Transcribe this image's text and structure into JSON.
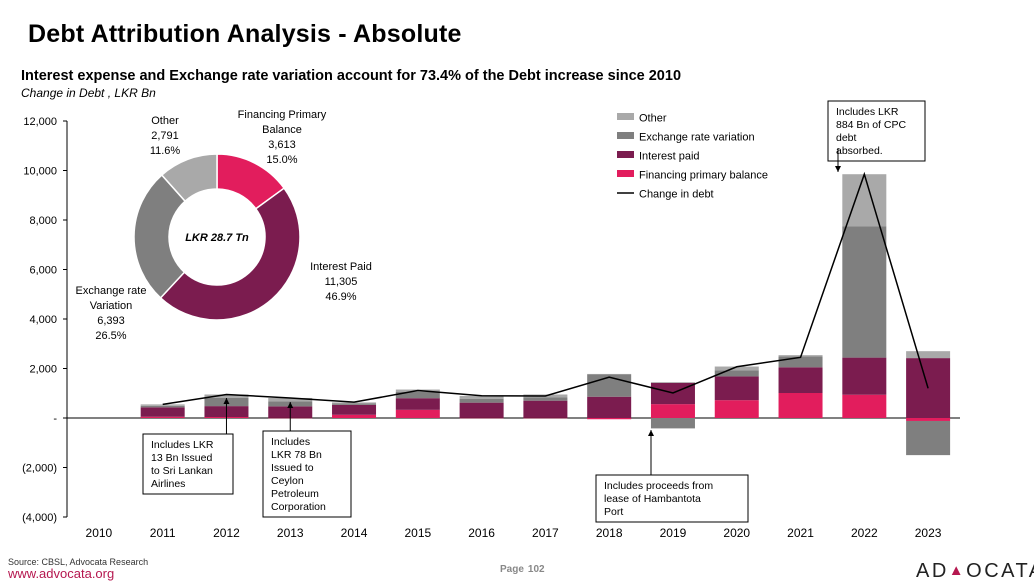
{
  "title": "Debt Attribution Analysis - Absolute",
  "subtitle": "Interest expense and Exchange rate variation account for 73.4% of the Debt increase since 2010",
  "units_label": "Change in Debt , LKR Bn",
  "footer": {
    "source": "Source: CBSL, Advocata Research",
    "url": "www.advocata.org",
    "page_label": "Page",
    "page_number": "102",
    "logo_text": "ADVOCATA"
  },
  "colors": {
    "other": "#a9a9a9",
    "exchange": "#7f7f7f",
    "interest": "#7b1c4f",
    "financing": "#e21d5d",
    "line": "#000000"
  },
  "chart_data": [
    {
      "type": "bar",
      "stacked": true,
      "categories": [
        "2010",
        "2011",
        "2012",
        "2013",
        "2014",
        "2015",
        "2016",
        "2017",
        "2018",
        "2019",
        "2020",
        "2021",
        "2022",
        "2023"
      ],
      "ylim": [
        -4000,
        12000
      ],
      "yticks": [
        -4000,
        -2000,
        0,
        2000,
        4000,
        6000,
        8000,
        10000,
        12000
      ],
      "ytick_labels": [
        "(4,000)",
        "(2,000)",
        "-",
        "2,000",
        "4,000",
        "6,000",
        "8,000",
        "10,000",
        "12,000"
      ],
      "legend_position": "top-right",
      "series": [
        {
          "name": "Financing primary balance",
          "key": "financing",
          "values": [
            0,
            50,
            40,
            10,
            130,
            330,
            10,
            10,
            -50,
            560,
            720,
            1010,
            940,
            -120
          ]
        },
        {
          "name": "Interest paid",
          "key": "interest",
          "values": [
            0,
            380,
            440,
            460,
            400,
            470,
            610,
            690,
            860,
            860,
            960,
            1040,
            1500,
            2420
          ]
        },
        {
          "name": "Exchange rate variation",
          "key": "exchange",
          "values": [
            0,
            60,
            340,
            200,
            60,
            250,
            160,
            130,
            900,
            -420,
            250,
            440,
            5310,
            -1380
          ]
        },
        {
          "name": "Other",
          "key": "other",
          "values": [
            0,
            60,
            130,
            140,
            40,
            100,
            110,
            120,
            20,
            30,
            150,
            50,
            2100,
            280
          ]
        }
      ],
      "line": {
        "name": "Change in debt",
        "values": [
          null,
          550,
          950,
          810,
          640,
          1110,
          900,
          890,
          1650,
          1010,
          2070,
          2450,
          9850,
          1200
        ]
      },
      "annotations": [
        {
          "text": "Includes LKR 13 Bn Issued to Sri Lankan Airlines",
          "year": "2012"
        },
        {
          "text": "Includes LKR 78 Bn Issued to Ceylon Petroleum Corporation",
          "year": "2013"
        },
        {
          "text": "Includes proceeds from lease of Hambantota Port",
          "year": "2019"
        },
        {
          "text": "Includes LKR 884 Bn of CPC debt absorbed.",
          "year": "2022"
        }
      ]
    },
    {
      "type": "pie",
      "donut": true,
      "center_label": "LKR 28.7 Tn",
      "slices": [
        {
          "name": "Financing Primary Balance",
          "value": 3613,
          "value_label": "3,613",
          "percent": "15.0%",
          "key": "financing"
        },
        {
          "name": "Interest Paid",
          "value": 11305,
          "value_label": "11,305",
          "percent": "46.9%",
          "key": "interest"
        },
        {
          "name": "Exchange rate Variation",
          "value": 6393,
          "value_label": "6,393",
          "percent": "26.5%",
          "key": "exchange"
        },
        {
          "name": "Other",
          "value": 2791,
          "value_label": "2,791",
          "percent": "11.6%",
          "key": "other"
        }
      ]
    }
  ]
}
